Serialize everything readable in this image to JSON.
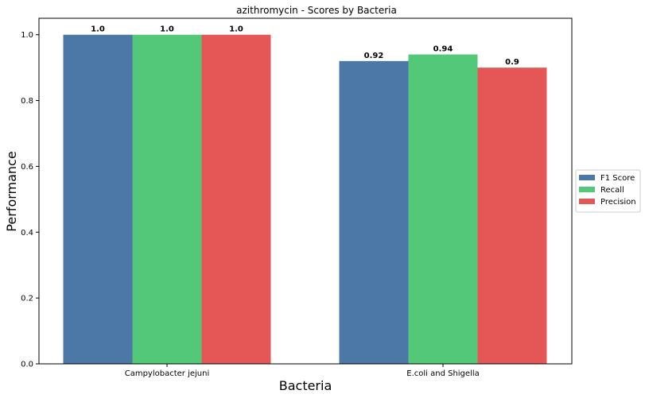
{
  "chart_data": {
    "type": "bar",
    "title": "azithromycin - Scores by Bacteria",
    "xlabel": "Bacteria",
    "ylabel": "Performance",
    "categories": [
      "Campylobacter jejuni",
      "E.coli and Shigella"
    ],
    "series": [
      {
        "name": "F1 Score",
        "values": [
          1.0,
          0.92
        ],
        "labels": [
          "1.0",
          "0.92"
        ],
        "color": "#4c78a8"
      },
      {
        "name": "Recall",
        "values": [
          1.0,
          0.94
        ],
        "labels": [
          "1.0",
          "0.94"
        ],
        "color": "#52c878"
      },
      {
        "name": "Precision",
        "values": [
          1.0,
          0.9
        ],
        "labels": [
          "1.0",
          "0.9"
        ],
        "color": "#e45756"
      }
    ],
    "ylim": [
      0,
      1.05
    ],
    "yticks": [
      {
        "value": 0.0,
        "label": "0.0"
      },
      {
        "value": 0.2,
        "label": "0.2"
      },
      {
        "value": 0.4,
        "label": "0.4"
      },
      {
        "value": 0.6,
        "label": "0.6"
      },
      {
        "value": 0.8,
        "label": "0.8"
      },
      {
        "value": 1.0,
        "label": "1.0"
      }
    ],
    "grid": false,
    "legend": "right"
  }
}
